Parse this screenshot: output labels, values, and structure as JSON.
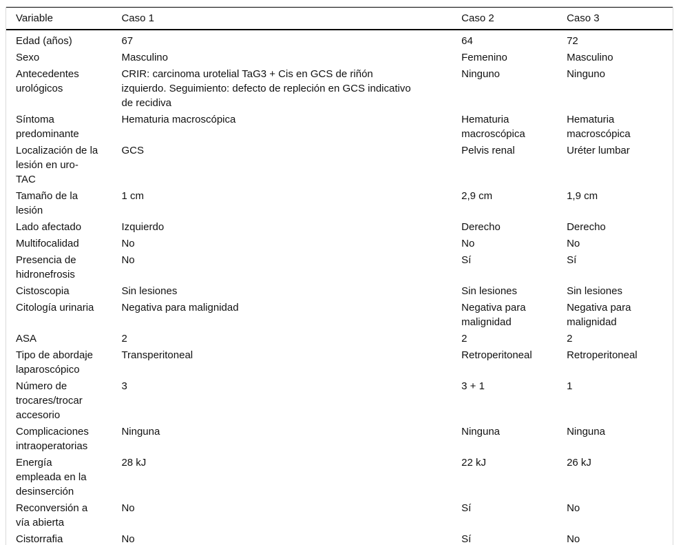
{
  "colors": {
    "rule": "#000000",
    "frame": "#d9d9d9",
    "text": "#111111",
    "background": "#ffffff"
  },
  "table": {
    "columns": [
      {
        "key": "variable",
        "label": "Variable"
      },
      {
        "key": "caso1",
        "label": "Caso 1"
      },
      {
        "key": "caso2",
        "label": "Caso 2"
      },
      {
        "key": "caso3",
        "label": "Caso 3"
      }
    ],
    "rows": [
      {
        "variable": "Edad (años)",
        "caso1": "67",
        "caso2": "64",
        "caso3": "72"
      },
      {
        "variable": "Sexo",
        "caso1": "Masculino",
        "caso2": "Femenino",
        "caso3": "Masculino"
      },
      {
        "variable": "Antecedentes\nurológicos",
        "caso1": "CRIR: carcinoma urotelial TaG3 + Cis en GCS de riñón\nizquierdo. Seguimiento: defecto de repleción en GCS indicativo\nde recidiva",
        "caso2": "Ninguno",
        "caso3": "Ninguno"
      },
      {
        "variable": "Síntoma\npredominante",
        "caso1": "Hematuria macroscópica",
        "caso2": "Hematuria\nmacroscópica",
        "caso3": "Hematuria\nmacroscópica"
      },
      {
        "variable": "Localización de la\nlesión en uro-\nTAC",
        "caso1": "GCS",
        "caso2": "Pelvis renal",
        "caso3": "Uréter lumbar"
      },
      {
        "variable": "Tamaño de la\nlesión",
        "caso1": "1 cm",
        "caso2": "2,9 cm",
        "caso3": "1,9 cm"
      },
      {
        "variable": "Lado afectado",
        "caso1": "Izquierdo",
        "caso2": "Derecho",
        "caso3": "Derecho"
      },
      {
        "variable": "Multifocalidad",
        "caso1": "No",
        "caso2": "No",
        "caso3": "No"
      },
      {
        "variable": "Presencia de\nhidronefrosis",
        "caso1": "No",
        "caso2": "Sí",
        "caso3": "Sí"
      },
      {
        "variable": "Cistoscopia",
        "caso1": "Sin lesiones",
        "caso2": "Sin lesiones",
        "caso3": "Sin lesiones"
      },
      {
        "variable": "Citología urinaria",
        "caso1": "Negativa para malignidad",
        "caso2": "Negativa para\nmalignidad",
        "caso3": "Negativa para\nmalignidad"
      },
      {
        "variable": "ASA",
        "caso1": "2",
        "caso2": "2",
        "caso3": "2"
      },
      {
        "variable": "Tipo de abordaje\nlaparoscópico",
        "caso1": "Transperitoneal",
        "caso2": "Retroperitoneal",
        "caso3": "Retroperitoneal"
      },
      {
        "variable": "Número de\ntrocares/trocar\naccesorio",
        "caso1": "3",
        "caso2": "3 + 1",
        "caso3": "1"
      },
      {
        "variable": "Complicaciones\nintraoperatorias",
        "caso1": "Ninguna",
        "caso2": "Ninguna",
        "caso3": "Ninguna"
      },
      {
        "variable": "Energía\nempleada en la\ndesinserción",
        "caso1": "28 kJ",
        "caso2": "22 kJ",
        "caso3": "26 kJ"
      },
      {
        "variable": "Reconversión a\nvía abierta",
        "caso1": "No",
        "caso2": "Sí",
        "caso3": "No"
      },
      {
        "variable": "Cistorrafia",
        "caso1": "No",
        "caso2": "Sí",
        "caso3": "No"
      }
    ]
  }
}
